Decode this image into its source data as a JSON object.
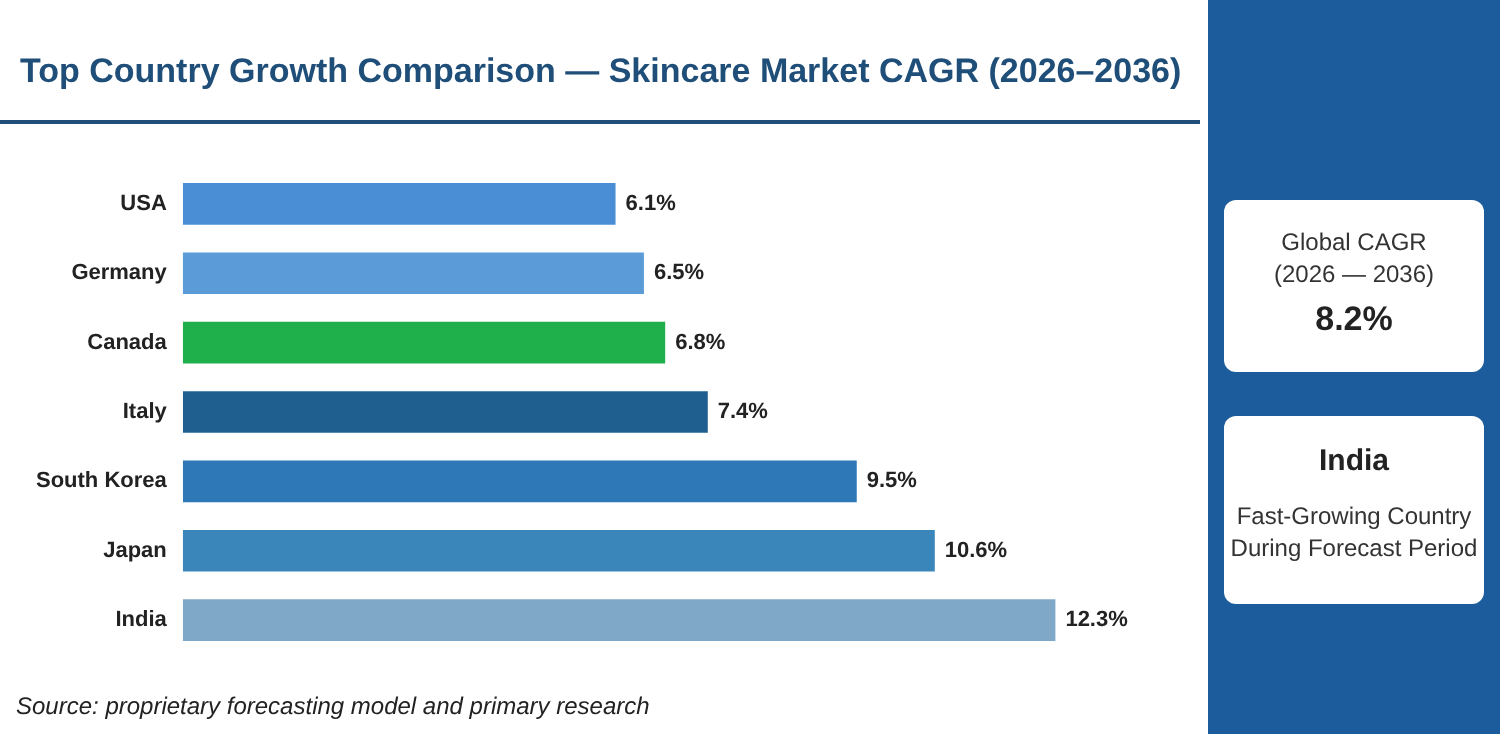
{
  "chart_data": {
    "type": "bar",
    "orientation": "horizontal",
    "title": "Top Country Growth Comparison — Skincare Market CAGR (2026–2036)",
    "categories": [
      "USA",
      "Germany",
      "Canada",
      "Italy",
      "South Korea",
      "Japan",
      "India"
    ],
    "values": [
      6.1,
      6.5,
      6.8,
      7.4,
      9.5,
      10.6,
      12.3
    ],
    "colors": [
      "#4a8fd6",
      "#5b9bd8",
      "#20b04b",
      "#1f5f8f",
      "#2e78b7",
      "#3a86ba",
      "#7fa7c7"
    ],
    "value_labels": [
      "6.1%",
      "6.5%",
      "6.8%",
      "7.4%",
      "9.5%",
      "10.6%",
      "12.3%"
    ],
    "tick_labels": "y",
    "grid": false,
    "legend": false,
    "annotations": [
      "Global CAGR",
      "(2026 — 2036)",
      "8.2%",
      "India",
      "Fast-Growing Country",
      "During Forecast Period",
      "Source: proprietary forecasting model and primary research"
    ]
  }
}
